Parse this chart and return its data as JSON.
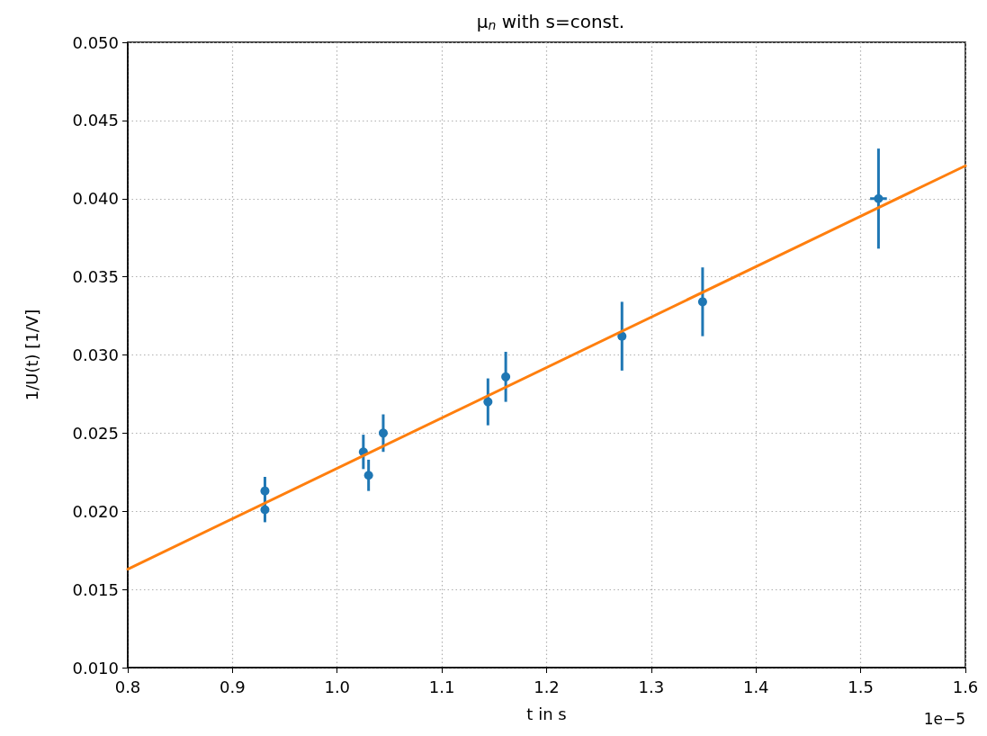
{
  "chart_data": {
    "type": "scatter",
    "title": "μ$_{n}$ with s=const.",
    "xlabel": "t in s",
    "ylabel": "1/U(t) [1/V]",
    "annotations": [
      "1e−5"
    ],
    "series": [
      {
        "color": "#1f77b4",
        "marker": "circle",
        "x": [
          0.931,
          0.931,
          1.025,
          1.03,
          1.044,
          1.144,
          1.161,
          1.272,
          1.349,
          1.517
        ],
        "values": [
          0.0213,
          0.0201,
          0.0238,
          0.0223,
          0.025,
          0.027,
          0.0286,
          0.0312,
          0.0334,
          0.04
        ],
        "errors": [
          0.0009,
          0.0008,
          0.0011,
          0.001,
          0.0012,
          0.0015,
          0.0016,
          0.0022,
          0.0022,
          0.0032
        ],
        "xerrors": [
          null,
          null,
          null,
          null,
          null,
          null,
          null,
          null,
          null,
          0.008
        ]
      },
      {
        "type": "line",
        "color": "#ff7f0e",
        "marker": "none",
        "line_style": "solid",
        "x": [
          0.8,
          1.6
        ],
        "values": [
          0.0163,
          0.0421
        ]
      }
    ],
    "xlim": [
      0.8,
      1.6
    ],
    "xticks": [
      {
        "value": 0.8,
        "label": "0.8"
      },
      {
        "value": 0.9,
        "label": "0.9"
      },
      {
        "value": 1.0,
        "label": "1.0"
      },
      {
        "value": 1.1,
        "label": "1.1"
      },
      {
        "value": 1.2,
        "label": "1.2"
      },
      {
        "value": 1.3,
        "label": "1.3"
      },
      {
        "value": 1.4,
        "label": "1.4"
      },
      {
        "value": 1.5,
        "label": "1.5"
      },
      {
        "value": 1.6,
        "label": "1.6"
      }
    ],
    "ylim": [
      0.01,
      0.05
    ],
    "yticks": [
      {
        "value": 0.01,
        "label": "0.010"
      },
      {
        "value": 0.015,
        "label": "0.015"
      },
      {
        "value": 0.02,
        "label": "0.020"
      },
      {
        "value": 0.025,
        "label": "0.025"
      },
      {
        "value": 0.03,
        "label": "0.030"
      },
      {
        "value": 0.035,
        "label": "0.035"
      },
      {
        "value": 0.04,
        "label": "0.040"
      },
      {
        "value": 0.045,
        "label": "0.045"
      },
      {
        "value": 0.05,
        "label": "0.050"
      }
    ],
    "grid": true
  }
}
